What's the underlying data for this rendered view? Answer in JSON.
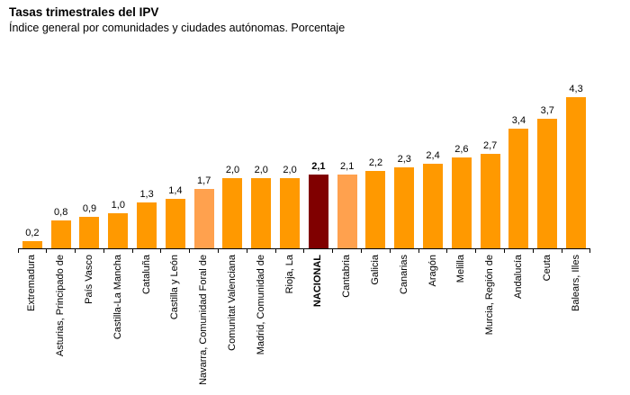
{
  "header": {
    "title": "Tasas trimestrales del IPV",
    "subtitle": "Índice general por comunidades y ciudades autónomas. Porcentaje"
  },
  "chart_data": {
    "type": "bar",
    "title": "Tasas trimestrales del IPV",
    "subtitle": "Índice general por comunidades y ciudades autónomas. Porcentaje",
    "xlabel": "",
    "ylabel": "",
    "ylim": [
      0,
      4.5
    ],
    "grid": false,
    "legend": null,
    "decimal_format": "comma",
    "categories": [
      "Extremadura",
      "Asturias, Principado de",
      "País Vasco",
      "Castilla-La Mancha",
      "Cataluña",
      "Castilla y León",
      "Navarra, Comunidad Foral de",
      "Comunitat Valenciana",
      "Madrid, Comunidad de",
      "Rioja, La",
      "NACIONAL",
      "Cantabria",
      "Galicia",
      "Canarias",
      "Aragón",
      "Melilla",
      "Murcia, Región de",
      "Andalucía",
      "Ceuta",
      "Balears, Illes"
    ],
    "values": [
      0.2,
      0.8,
      0.9,
      1.0,
      1.3,
      1.4,
      1.7,
      2.0,
      2.0,
      2.0,
      2.1,
      2.1,
      2.2,
      2.3,
      2.4,
      2.6,
      2.7,
      3.4,
      3.7,
      4.3
    ],
    "value_labels": [
      "0,2",
      "0,8",
      "0,9",
      "1,0",
      "1,3",
      "1,4",
      "1,7",
      "2,0",
      "2,0",
      "2,0",
      "2,1",
      "2,1",
      "2,2",
      "2,3",
      "2,4",
      "2,6",
      "2,7",
      "3,4",
      "3,7",
      "4,3"
    ],
    "bar_roles": [
      "default",
      "default",
      "default",
      "default",
      "default",
      "default",
      "secondary",
      "default",
      "default",
      "default",
      "national",
      "secondary",
      "default",
      "default",
      "default",
      "default",
      "default",
      "default",
      "default",
      "default"
    ],
    "colors": {
      "default": "#FF9900",
      "secondary": "#FFA14E",
      "national": "#800000",
      "axis": "#000000",
      "text": "#000000"
    }
  }
}
